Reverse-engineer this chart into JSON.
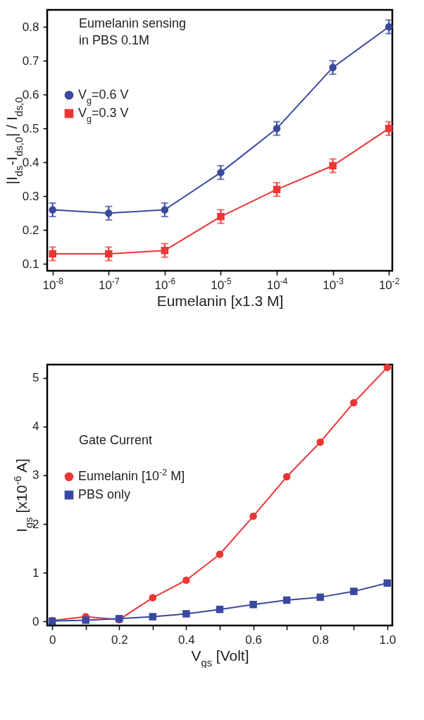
{
  "chart_data": [
    {
      "type": "line",
      "xlabel": "Eumelanin [x1.3 M]",
      "ylabel": "|I$_{ds}$-I$_{ds,0}$| / I$_{ds,0}$",
      "annotations": [
        "Eumelanin sensing",
        "in PBS 0.1M"
      ],
      "log": "x",
      "xlim": [
        8e-09,
        0.0115
      ],
      "ylim": [
        0.08,
        0.85
      ],
      "xticks": [
        {
          "value": 1e-08,
          "label": "10$^{-8}$"
        },
        {
          "value": 1e-07,
          "label": "10$^{-7}$"
        },
        {
          "value": 1e-06,
          "label": "10$^{-6}$"
        },
        {
          "value": 1e-05,
          "label": "10$^{-5}$"
        },
        {
          "value": 0.0001,
          "label": "10$^{-4}$"
        },
        {
          "value": 0.001,
          "label": "10$^{-3}$"
        },
        {
          "value": 0.01,
          "label": "10$^{-2}$"
        }
      ],
      "yticks": [
        0.1,
        0.2,
        0.3,
        0.4,
        0.5,
        0.6,
        0.7,
        0.8
      ],
      "grid": false,
      "legend": "top left",
      "line_style": "solid",
      "x": [
        1e-08,
        1e-07,
        1e-06,
        1e-05,
        0.0001,
        0.001,
        0.01
      ],
      "series": [
        {
          "name": "V$_{g}$=0.6 V",
          "color": "#3a48a0",
          "marker": "circle",
          "values": [
            0.26,
            0.25,
            0.26,
            0.37,
            0.5,
            0.68,
            0.8
          ],
          "errors": [
            0.02,
            0.02,
            0.02,
            0.02,
            0.02,
            0.02,
            0.02
          ]
        },
        {
          "name": "V$_{g}$=0.3 V",
          "color": "#ee3535",
          "marker": "square",
          "values": [
            0.13,
            0.13,
            0.14,
            0.24,
            0.32,
            0.39,
            0.5
          ],
          "errors": [
            0.02,
            0.02,
            0.02,
            0.02,
            0.02,
            0.02,
            0.02
          ]
        }
      ]
    },
    {
      "type": "line",
      "xlabel": "V$_{gs}$ [Volt]",
      "ylabel": "I$_{gs}$ [x10$^{-6}$ A]",
      "annotations": [
        "Gate Current"
      ],
      "xlim": [
        -0.015,
        1.015
      ],
      "ylim": [
        -0.08,
        5.27
      ],
      "xticks": [
        0,
        {
          "value": 0.1,
          "label": null
        },
        {
          "value": 0.2,
          "label": "0.2"
        },
        {
          "value": 0.3,
          "label": null
        },
        {
          "value": 0.4,
          "label": "0.4"
        },
        {
          "value": 0.5,
          "label": null
        },
        {
          "value": 0.6,
          "label": "0.6"
        },
        {
          "value": 0.7,
          "label": null
        },
        {
          "value": 0.8,
          "label": "0.8"
        },
        {
          "value": 0.9,
          "label": null
        },
        {
          "value": 1,
          "label": "1.0"
        }
      ],
      "yticks": [
        0,
        1,
        2,
        3,
        4,
        5
      ],
      "grid": false,
      "legend": "left",
      "line_style": "solid",
      "x": [
        0,
        0.1,
        0.2,
        0.3,
        0.4,
        0.5,
        0.6,
        0.7,
        0.8,
        0.9,
        1.0
      ],
      "series": [
        {
          "name": "Eumelanin [10$^{-2}$ M]",
          "color": "#ee3535",
          "marker": "circle",
          "values": [
            0.02,
            0.1,
            0.04,
            0.49,
            0.85,
            1.38,
            2.16,
            2.97,
            3.68,
            4.49,
            5.21
          ]
        },
        {
          "name": "PBS only",
          "color": "#3a48a0",
          "marker": "square",
          "values": [
            0.01,
            0.03,
            0.06,
            0.1,
            0.16,
            0.25,
            0.35,
            0.44,
            0.5,
            0.62,
            0.79
          ]
        }
      ]
    }
  ]
}
